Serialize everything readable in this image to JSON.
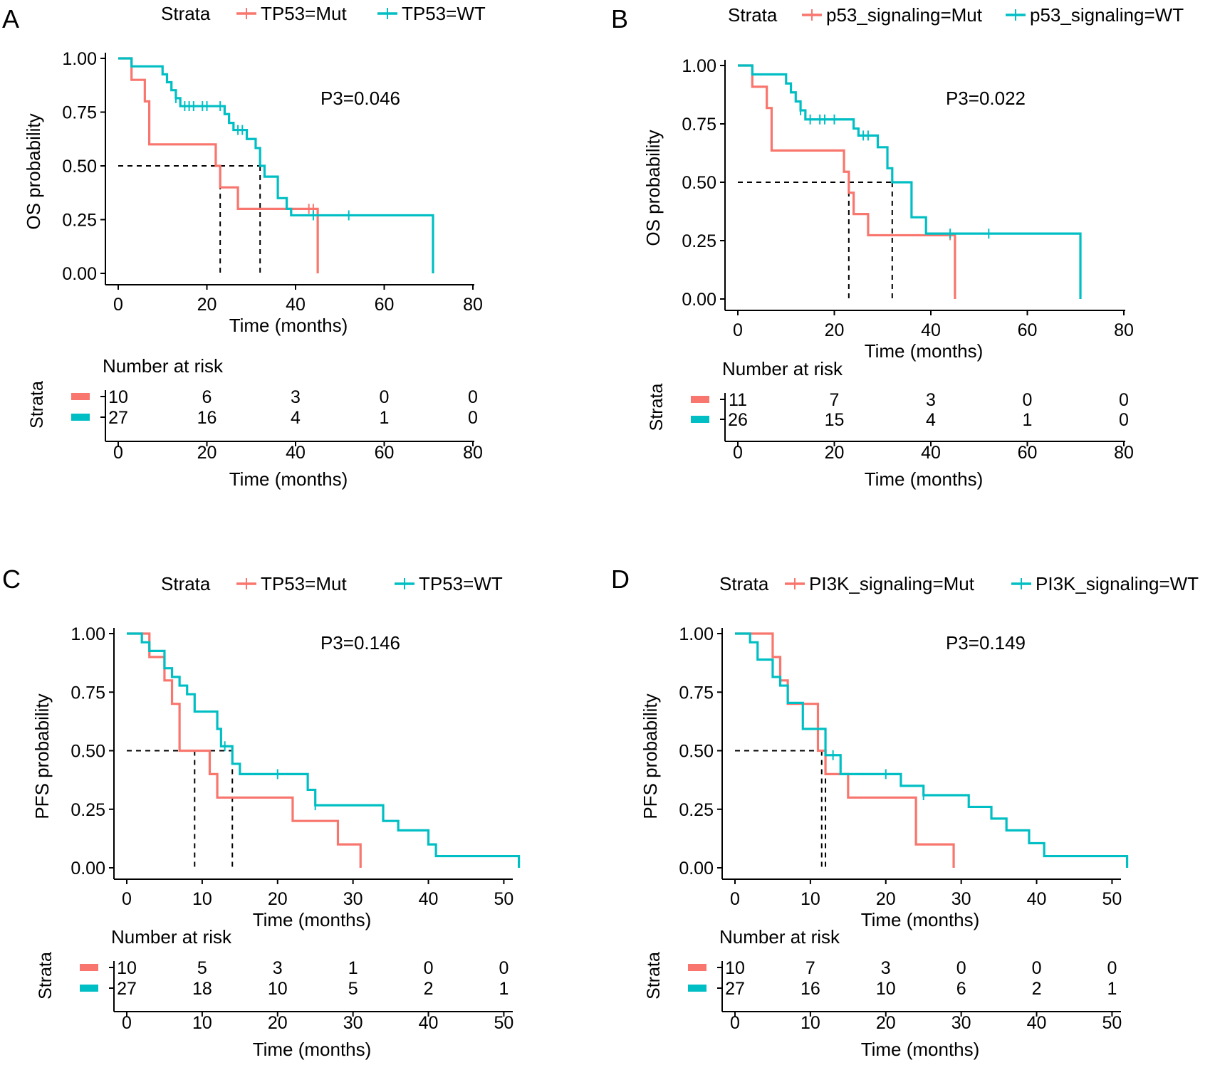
{
  "colors": {
    "mut": "#F8766D",
    "wt": "#00BFC4",
    "axis": "#000000",
    "median": "#000000"
  },
  "chart_data": [
    {
      "type": "kaplan-meier",
      "panel_label": "A",
      "legend": {
        "title": "Strata",
        "position": "top",
        "entries": [
          "TP53=Mut",
          "TP53=WT"
        ]
      },
      "ylabel": "OS probability",
      "xlabel": "Time (months)",
      "xlim": [
        0,
        80
      ],
      "ylim": [
        0,
        1
      ],
      "xticks": [
        0,
        20,
        40,
        60,
        80
      ],
      "yticks": [
        "0.00",
        "0.25",
        "0.50",
        "0.75",
        "1.00"
      ],
      "pvalue": "P3=0.046",
      "medians": [
        23,
        32
      ],
      "series": [
        {
          "name": "TP53=Mut",
          "color": "mut",
          "steps": [
            [
              0,
              1
            ],
            [
              3,
              0.9
            ],
            [
              6,
              0.8
            ],
            [
              7,
              0.6
            ],
            [
              22,
              0.5
            ],
            [
              23,
              0.4
            ],
            [
              27,
              0.3
            ],
            [
              45,
              0
            ]
          ],
          "censors": [
            [
              43,
              0.3
            ],
            [
              44,
              0.3
            ]
          ]
        },
        {
          "name": "TP53=WT",
          "color": "wt",
          "steps": [
            [
              0,
              1
            ],
            [
              3,
              0.963
            ],
            [
              10,
              0.926
            ],
            [
              11,
              0.889
            ],
            [
              12,
              0.852
            ],
            [
              13,
              0.815
            ],
            [
              14,
              0.778
            ],
            [
              24,
              0.741
            ],
            [
              25,
              0.7
            ],
            [
              26,
              0.667
            ],
            [
              29,
              0.625
            ],
            [
              31,
              0.583
            ],
            [
              32,
              0.5
            ],
            [
              33,
              0.45
            ],
            [
              36,
              0.35
            ],
            [
              38,
              0.3
            ],
            [
              39,
              0.27
            ],
            [
              71,
              0
            ]
          ],
          "censors": [
            [
              13,
              0.815
            ],
            [
              15,
              0.778
            ],
            [
              16,
              0.778
            ],
            [
              17,
              0.778
            ],
            [
              19,
              0.778
            ],
            [
              20,
              0.778
            ],
            [
              23,
              0.778
            ],
            [
              27,
              0.667
            ],
            [
              28,
              0.667
            ],
            [
              44,
              0.27
            ],
            [
              52,
              0.27
            ]
          ]
        }
      ],
      "risk_table": {
        "title": "Number at risk",
        "ylabel": "Strata",
        "xlabel": "Time (months)",
        "times": [
          0,
          20,
          40,
          60,
          80
        ],
        "rows": [
          [
            10,
            6,
            3,
            0,
            0
          ],
          [
            27,
            16,
            4,
            1,
            0
          ]
        ]
      }
    },
    {
      "type": "kaplan-meier",
      "panel_label": "B",
      "legend": {
        "title": "Strata",
        "position": "top",
        "entries": [
          "p53_signaling=Mut",
          "p53_signaling=WT"
        ]
      },
      "ylabel": "OS probability",
      "xlabel": "Time (months)",
      "xlim": [
        0,
        80
      ],
      "ylim": [
        0,
        1
      ],
      "xticks": [
        0,
        20,
        40,
        60,
        80
      ],
      "yticks": [
        "0.00",
        "0.25",
        "0.50",
        "0.75",
        "1.00"
      ],
      "pvalue": "P3=0.022",
      "medians": [
        23,
        32
      ],
      "series": [
        {
          "name": "p53_signaling=Mut",
          "color": "mut",
          "steps": [
            [
              0,
              1
            ],
            [
              3,
              0.909
            ],
            [
              6,
              0.818
            ],
            [
              7,
              0.636
            ],
            [
              22,
              0.545
            ],
            [
              23,
              0.455
            ],
            [
              24,
              0.364
            ],
            [
              27,
              0.273
            ],
            [
              45,
              0
            ]
          ],
          "censors": [
            [
              44,
              0.273
            ]
          ]
        },
        {
          "name": "p53_signaling=WT",
          "color": "wt",
          "steps": [
            [
              0,
              1
            ],
            [
              3,
              0.962
            ],
            [
              10,
              0.923
            ],
            [
              11,
              0.885
            ],
            [
              12,
              0.846
            ],
            [
              13,
              0.808
            ],
            [
              14,
              0.769
            ],
            [
              24,
              0.73
            ],
            [
              25,
              0.7
            ],
            [
              29,
              0.65
            ],
            [
              31,
              0.56
            ],
            [
              32,
              0.5
            ],
            [
              36,
              0.35
            ],
            [
              39,
              0.28
            ],
            [
              71,
              0
            ]
          ],
          "censors": [
            [
              13,
              0.808
            ],
            [
              15,
              0.769
            ],
            [
              17,
              0.769
            ],
            [
              18,
              0.769
            ],
            [
              20,
              0.769
            ],
            [
              26,
              0.7
            ],
            [
              27,
              0.7
            ],
            [
              44,
              0.28
            ],
            [
              52,
              0.28
            ]
          ]
        }
      ],
      "risk_table": {
        "title": "Number at risk",
        "ylabel": "Strata",
        "xlabel": "Time (months)",
        "times": [
          0,
          20,
          40,
          60,
          80
        ],
        "rows": [
          [
            11,
            7,
            3,
            0,
            0
          ],
          [
            26,
            15,
            4,
            1,
            0
          ]
        ]
      }
    },
    {
      "type": "kaplan-meier",
      "panel_label": "C",
      "legend": {
        "title": "Strata",
        "position": "top",
        "entries": [
          "TP53=Mut",
          "TP53=WT"
        ]
      },
      "ylabel": "PFS probability",
      "xlabel": "Time (months)",
      "xlim": [
        0,
        51
      ],
      "ylim": [
        0,
        1
      ],
      "xticks": [
        0,
        10,
        20,
        30,
        40,
        50
      ],
      "yticks": [
        "0.00",
        "0.25",
        "0.50",
        "0.75",
        "1.00"
      ],
      "pvalue": "P3=0.146",
      "medians": [
        9,
        14
      ],
      "series": [
        {
          "name": "TP53=Mut",
          "color": "mut",
          "steps": [
            [
              0,
              1
            ],
            [
              3,
              0.9
            ],
            [
              5,
              0.8
            ],
            [
              6,
              0.7
            ],
            [
              7,
              0.5
            ],
            [
              11,
              0.4
            ],
            [
              12,
              0.3
            ],
            [
              22,
              0.2
            ],
            [
              28,
              0.1
            ],
            [
              31,
              0
            ]
          ],
          "censors": []
        },
        {
          "name": "TP53=WT",
          "color": "wt",
          "steps": [
            [
              0,
              1
            ],
            [
              2,
              0.963
            ],
            [
              3,
              0.926
            ],
            [
              5,
              0.852
            ],
            [
              6,
              0.815
            ],
            [
              7,
              0.778
            ],
            [
              8,
              0.741
            ],
            [
              9,
              0.667
            ],
            [
              12,
              0.593
            ],
            [
              12.5,
              0.519
            ],
            [
              14,
              0.444
            ],
            [
              15,
              0.4
            ],
            [
              24,
              0.333
            ],
            [
              25,
              0.267
            ],
            [
              34,
              0.2
            ],
            [
              36,
              0.16
            ],
            [
              40,
              0.1
            ],
            [
              41,
              0.05
            ],
            [
              52,
              0
            ]
          ],
          "censors": [
            [
              13,
              0.519
            ],
            [
              20,
              0.4
            ],
            [
              25,
              0.267
            ]
          ]
        }
      ],
      "risk_table": {
        "title": "Number at risk",
        "ylabel": "Strata",
        "xlabel": "Time (months)",
        "times": [
          0,
          10,
          20,
          30,
          40,
          50
        ],
        "rows": [
          [
            10,
            5,
            3,
            1,
            0,
            0
          ],
          [
            27,
            18,
            10,
            5,
            2,
            1
          ]
        ]
      }
    },
    {
      "type": "kaplan-meier",
      "panel_label": "D",
      "legend": {
        "title": "Strata",
        "position": "top",
        "entries": [
          "PI3K_signaling=Mut",
          "PI3K_signaling=WT"
        ]
      },
      "ylabel": "PFS probability",
      "xlabel": "Time (months)",
      "xlim": [
        0,
        51
      ],
      "ylim": [
        0,
        1
      ],
      "xticks": [
        0,
        10,
        20,
        30,
        40,
        50
      ],
      "yticks": [
        "0.00",
        "0.25",
        "0.50",
        "0.75",
        "1.00"
      ],
      "pvalue": "P3=0.149",
      "medians": [
        11.5,
        12
      ],
      "series": [
        {
          "name": "PI3K_signaling=Mut",
          "color": "mut",
          "steps": [
            [
              0,
              1
            ],
            [
              5,
              0.9
            ],
            [
              6,
              0.8
            ],
            [
              7,
              0.7
            ],
            [
              11,
              0.5
            ],
            [
              12,
              0.4
            ],
            [
              15,
              0.3
            ],
            [
              24,
              0.1
            ],
            [
              29,
              0
            ]
          ],
          "censors": []
        },
        {
          "name": "PI3K_signaling=WT",
          "color": "wt",
          "steps": [
            [
              0,
              1
            ],
            [
              2,
              0.963
            ],
            [
              3,
              0.889
            ],
            [
              5,
              0.815
            ],
            [
              6,
              0.778
            ],
            [
              7,
              0.704
            ],
            [
              9,
              0.593
            ],
            [
              12,
              0.481
            ],
            [
              14,
              0.4
            ],
            [
              22,
              0.35
            ],
            [
              25,
              0.31
            ],
            [
              31,
              0.26
            ],
            [
              34,
              0.21
            ],
            [
              36,
              0.16
            ],
            [
              39,
              0.105
            ],
            [
              41,
              0.05
            ],
            [
              52,
              0
            ]
          ],
          "censors": [
            [
              13,
              0.481
            ],
            [
              20,
              0.4
            ],
            [
              25,
              0.31
            ]
          ]
        }
      ],
      "risk_table": {
        "title": "Number at risk",
        "ylabel": "Strata",
        "xlabel": "Time (months)",
        "times": [
          0,
          10,
          20,
          30,
          40,
          50
        ],
        "rows": [
          [
            10,
            7,
            3,
            0,
            0,
            0
          ],
          [
            27,
            16,
            10,
            6,
            2,
            1
          ]
        ]
      }
    }
  ]
}
